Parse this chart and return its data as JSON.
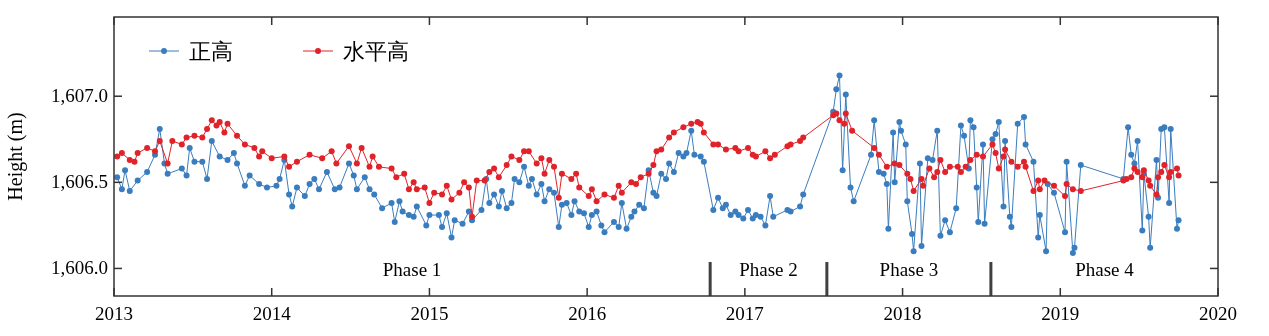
{
  "chart_data": {
    "type": "line",
    "ylabel": "Height (m)",
    "xlim": [
      2013,
      2020
    ],
    "ylim": [
      1605.84,
      1607.46
    ],
    "xticks": [
      2013,
      2014,
      2015,
      2016,
      2017,
      2018,
      2019,
      2020
    ],
    "yticks": [
      {
        "value": 1606.0,
        "label": "1,606.0"
      },
      {
        "value": 1606.5,
        "label": "1,606.5"
      },
      {
        "value": 1607.0,
        "label": "1,607.0"
      }
    ],
    "legend": "top left",
    "marker": "circle",
    "grid": false,
    "series": [
      {
        "name": "正高",
        "color": "#3a7dbf",
        "x": [
          2013.02,
          2013.05,
          2013.07,
          2013.1,
          2013.15,
          2013.21,
          2013.26,
          2013.29,
          2013.32,
          2013.34,
          2013.43,
          2013.46,
          2013.48,
          2013.51,
          2013.56,
          2013.59,
          2013.62,
          2013.67,
          2013.72,
          2013.76,
          2013.78,
          2013.83,
          2013.86,
          2013.92,
          2013.97,
          2014.03,
          2014.05,
          2014.08,
          2014.11,
          2014.13,
          2014.16,
          2014.21,
          2014.24,
          2014.27,
          2014.3,
          2014.35,
          2014.4,
          2014.43,
          2014.49,
          2014.52,
          2014.54,
          2014.59,
          2014.62,
          2014.65,
          2014.7,
          2014.76,
          2014.78,
          2014.81,
          2014.83,
          2014.87,
          2014.9,
          2014.92,
          2014.98,
          2015.0,
          2015.06,
          2015.08,
          2015.11,
          2015.14,
          2015.16,
          2015.21,
          2015.25,
          2015.27,
          2015.33,
          2015.36,
          2015.38,
          2015.41,
          2015.44,
          2015.46,
          2015.49,
          2015.52,
          2015.54,
          2015.57,
          2015.6,
          2015.63,
          2015.65,
          2015.68,
          2015.71,
          2015.73,
          2015.76,
          2015.79,
          2015.82,
          2015.84,
          2015.87,
          2015.9,
          2015.92,
          2015.95,
          2015.98,
          2016.01,
          2016.03,
          2016.06,
          2016.09,
          2016.11,
          2016.17,
          2016.2,
          2016.22,
          2016.25,
          2016.28,
          2016.3,
          2016.33,
          2016.36,
          2016.39,
          2016.42,
          2016.44,
          2016.47,
          2016.5,
          2016.52,
          2016.55,
          2016.58,
          2016.61,
          2016.63,
          2016.66,
          2016.68,
          2016.72,
          2016.74,
          2016.8,
          2016.83,
          2016.86,
          2016.88,
          2016.91,
          2016.94,
          2016.96,
          2016.99,
          2017.02,
          2017.05,
          2017.07,
          2017.1,
          2017.13,
          2017.16,
          2017.18,
          2017.27,
          2017.29,
          2017.35,
          2017.37,
          2017.56,
          2017.58,
          2017.6,
          2017.62,
          2017.64,
          2017.67,
          2017.69,
          2017.8,
          2017.82,
          2017.85,
          2017.88,
          2017.9,
          2017.91,
          2017.94,
          2017.95,
          2017.98,
          2017.99,
          2018.02,
          2018.03,
          2018.06,
          2018.07,
          2018.11,
          2018.12,
          2018.16,
          2018.19,
          2018.22,
          2018.24,
          2018.27,
          2018.3,
          2018.34,
          2018.37,
          2018.39,
          2018.42,
          2018.43,
          2018.45,
          2018.47,
          2018.48,
          2018.51,
          2018.52,
          2018.57,
          2018.59,
          2018.61,
          2018.64,
          2018.65,
          2018.68,
          2018.69,
          2018.73,
          2018.77,
          2018.78,
          2018.83,
          2018.86,
          2018.87,
          2018.91,
          2018.92,
          2018.96,
          2019.03,
          2019.04,
          2019.08,
          2019.09,
          2019.13,
          2019.4,
          2019.43,
          2019.45,
          2019.47,
          2019.49,
          2019.52,
          2019.53,
          2019.56,
          2019.57,
          2019.61,
          2019.62,
          2019.64,
          2019.66,
          2019.69,
          2019.7,
          2019.74,
          2019.75
        ],
        "values": [
          1606.53,
          1606.46,
          1606.57,
          1606.45,
          1606.51,
          1606.56,
          1606.66,
          1606.81,
          1606.61,
          1606.55,
          1606.58,
          1606.54,
          1606.7,
          1606.62,
          1606.62,
          1606.52,
          1606.74,
          1606.65,
          1606.63,
          1606.67,
          1606.61,
          1606.48,
          1606.54,
          1606.49,
          1606.47,
          1606.48,
          1606.52,
          1606.63,
          1606.43,
          1606.36,
          1606.47,
          1606.42,
          1606.49,
          1606.52,
          1606.46,
          1606.56,
          1606.46,
          1606.47,
          1606.61,
          1606.54,
          1606.46,
          1606.53,
          1606.46,
          1606.43,
          1606.35,
          1606.38,
          1606.27,
          1606.39,
          1606.33,
          1606.31,
          1606.3,
          1606.36,
          1606.25,
          1606.31,
          1606.31,
          1606.24,
          1606.32,
          1606.18,
          1606.28,
          1606.26,
          1606.33,
          1606.28,
          1606.34,
          1606.52,
          1606.38,
          1606.43,
          1606.36,
          1606.45,
          1606.35,
          1606.38,
          1606.52,
          1606.5,
          1606.59,
          1606.48,
          1606.52,
          1606.43,
          1606.49,
          1606.39,
          1606.46,
          1606.44,
          1606.24,
          1606.37,
          1606.38,
          1606.31,
          1606.39,
          1606.33,
          1606.32,
          1606.24,
          1606.31,
          1606.33,
          1606.25,
          1606.21,
          1606.27,
          1606.24,
          1606.38,
          1606.23,
          1606.3,
          1606.33,
          1606.37,
          1606.35,
          1606.57,
          1606.44,
          1606.42,
          1606.55,
          1606.52,
          1606.61,
          1606.56,
          1606.67,
          1606.65,
          1606.67,
          1606.8,
          1606.66,
          1606.65,
          1606.62,
          1606.34,
          1606.41,
          1606.35,
          1606.37,
          1606.31,
          1606.33,
          1606.31,
          1606.29,
          1606.34,
          1606.29,
          1606.31,
          1606.3,
          1606.25,
          1606.42,
          1606.3,
          1606.34,
          1606.33,
          1606.36,
          1606.43,
          1606.91,
          1607.04,
          1607.12,
          1606.57,
          1607.01,
          1606.47,
          1606.39,
          1606.66,
          1606.86,
          1606.56,
          1606.55,
          1606.49,
          1606.23,
          1606.79,
          1606.5,
          1606.85,
          1606.8,
          1606.72,
          1606.39,
          1606.2,
          1606.1,
          1606.61,
          1606.13,
          1606.64,
          1606.63,
          1606.8,
          1606.19,
          1606.28,
          1606.21,
          1606.35,
          1606.83,
          1606.77,
          1606.58,
          1606.86,
          1606.82,
          1606.47,
          1606.27,
          1606.72,
          1606.26,
          1606.75,
          1606.78,
          1606.85,
          1606.36,
          1606.74,
          1606.3,
          1606.24,
          1606.84,
          1606.88,
          1606.72,
          1606.62,
          1606.18,
          1606.31,
          1606.1,
          1606.49,
          1606.44,
          1606.21,
          1606.62,
          1606.09,
          1606.12,
          1606.6,
          1606.52,
          1606.82,
          1606.66,
          1606.61,
          1606.74,
          1606.22,
          1606.55,
          1606.3,
          1606.12,
          1606.63,
          1606.41,
          1606.81,
          1606.82,
          1606.38,
          1606.81,
          1606.23,
          1606.28
        ]
      },
      {
        "name": "水平高",
        "color": "#e0232a",
        "x": [
          2013.02,
          2013.05,
          2013.1,
          2013.13,
          2013.15,
          2013.21,
          2013.26,
          2013.29,
          2013.34,
          2013.37,
          2013.43,
          2013.46,
          2013.51,
          2013.56,
          2013.59,
          2013.62,
          2013.65,
          2013.67,
          2013.7,
          2013.72,
          2013.78,
          2013.83,
          2013.89,
          2013.92,
          2013.94,
          2014.0,
          2014.08,
          2014.11,
          2014.16,
          2014.24,
          2014.32,
          2014.38,
          2014.41,
          2014.49,
          2014.54,
          2014.57,
          2014.62,
          2014.64,
          2014.68,
          2014.76,
          2014.79,
          2014.84,
          2014.87,
          2014.9,
          2014.92,
          2014.97,
          2015.0,
          2015.03,
          2015.08,
          2015.11,
          2015.14,
          2015.19,
          2015.22,
          2015.25,
          2015.27,
          2015.3,
          2015.35,
          2015.38,
          2015.41,
          2015.44,
          2015.49,
          2015.52,
          2015.57,
          2015.6,
          2015.63,
          2015.68,
          2015.71,
          2015.73,
          2015.76,
          2015.79,
          2015.82,
          2015.84,
          2015.9,
          2015.93,
          2015.95,
          2016.01,
          2016.03,
          2016.06,
          2016.11,
          2016.17,
          2016.2,
          2016.22,
          2016.28,
          2016.31,
          2016.34,
          2016.39,
          2016.42,
          2016.44,
          2016.47,
          2016.52,
          2016.55,
          2016.61,
          2016.66,
          2016.7,
          2016.72,
          2016.74,
          2016.8,
          2016.83,
          2016.88,
          2016.94,
          2016.96,
          2017.02,
          2017.05,
          2017.07,
          2017.13,
          2017.16,
          2017.19,
          2017.27,
          2017.29,
          2017.35,
          2017.37,
          2017.56,
          2017.58,
          2017.6,
          2017.63,
          2017.64,
          2017.68,
          2017.82,
          2017.85,
          2017.9,
          2017.95,
          2017.98,
          2018.03,
          2018.05,
          2018.07,
          2018.12,
          2018.13,
          2018.17,
          2018.2,
          2018.22,
          2018.24,
          2018.27,
          2018.3,
          2018.35,
          2018.37,
          2018.4,
          2018.43,
          2018.47,
          2018.51,
          2018.57,
          2018.59,
          2018.61,
          2018.64,
          2018.65,
          2018.69,
          2018.73,
          2018.77,
          2018.78,
          2018.83,
          2018.86,
          2018.87,
          2018.9,
          2018.96,
          2019.03,
          2019.04,
          2019.08,
          2019.13,
          2019.4,
          2019.42,
          2019.45,
          2019.47,
          2019.49,
          2019.52,
          2019.53,
          2019.56,
          2019.57,
          2019.61,
          2019.62,
          2019.64,
          2019.66,
          2019.69,
          2019.7,
          2019.74,
          2019.75
        ],
        "values": [
          1606.65,
          1606.67,
          1606.63,
          1606.62,
          1606.67,
          1606.7,
          1606.68,
          1606.74,
          1606.61,
          1606.74,
          1606.72,
          1606.76,
          1606.77,
          1606.76,
          1606.81,
          1606.86,
          1606.83,
          1606.85,
          1606.79,
          1606.84,
          1606.77,
          1606.72,
          1606.7,
          1606.65,
          1606.68,
          1606.64,
          1606.65,
          1606.59,
          1606.62,
          1606.66,
          1606.64,
          1606.68,
          1606.61,
          1606.71,
          1606.61,
          1606.7,
          1606.59,
          1606.65,
          1606.59,
          1606.58,
          1606.53,
          1606.55,
          1606.46,
          1606.5,
          1606.46,
          1606.47,
          1606.38,
          1606.44,
          1606.43,
          1606.48,
          1606.4,
          1606.44,
          1606.5,
          1606.47,
          1606.3,
          1606.51,
          1606.51,
          1606.56,
          1606.58,
          1606.53,
          1606.6,
          1606.65,
          1606.63,
          1606.68,
          1606.68,
          1606.61,
          1606.64,
          1606.55,
          1606.63,
          1606.59,
          1606.41,
          1606.55,
          1606.52,
          1606.55,
          1606.47,
          1606.42,
          1606.46,
          1606.39,
          1606.43,
          1606.41,
          1606.48,
          1606.44,
          1606.5,
          1606.49,
          1606.53,
          1606.55,
          1606.6,
          1606.68,
          1606.69,
          1606.76,
          1606.79,
          1606.82,
          1606.84,
          1606.85,
          1606.84,
          1606.79,
          1606.72,
          1606.72,
          1606.69,
          1606.7,
          1606.68,
          1606.7,
          1606.66,
          1606.65,
          1606.68,
          1606.64,
          1606.66,
          1606.71,
          1606.72,
          1606.74,
          1606.76,
          1606.89,
          1606.9,
          1606.86,
          1606.84,
          1606.9,
          1606.8,
          1606.7,
          1606.66,
          1606.59,
          1606.61,
          1606.6,
          1606.55,
          1606.52,
          1606.45,
          1606.52,
          1606.48,
          1606.58,
          1606.53,
          1606.56,
          1606.63,
          1606.56,
          1606.59,
          1606.59,
          1606.56,
          1606.59,
          1606.63,
          1606.66,
          1606.65,
          1606.72,
          1606.67,
          1606.58,
          1606.65,
          1606.69,
          1606.62,
          1606.59,
          1606.62,
          1606.59,
          1606.45,
          1606.51,
          1606.46,
          1606.51,
          1606.48,
          1606.42,
          1606.49,
          1606.46,
          1606.45,
          1606.51,
          1606.52,
          1606.53,
          1606.58,
          1606.56,
          1606.53,
          1606.57,
          1606.51,
          1606.48,
          1606.43,
          1606.53,
          1606.56,
          1606.6,
          1606.53,
          1606.56,
          1606.58,
          1606.54
        ]
      }
    ],
    "ref_lines": [
      {
        "axis": "x",
        "value": 2016.78,
        "color": "#404040"
      },
      {
        "axis": "x",
        "value": 2017.52,
        "color": "#404040"
      },
      {
        "axis": "x",
        "value": 2018.56,
        "color": "#404040"
      }
    ],
    "annotations": [
      "Phase 1",
      "Phase 2",
      "Phase 3",
      "Phase 4"
    ]
  }
}
